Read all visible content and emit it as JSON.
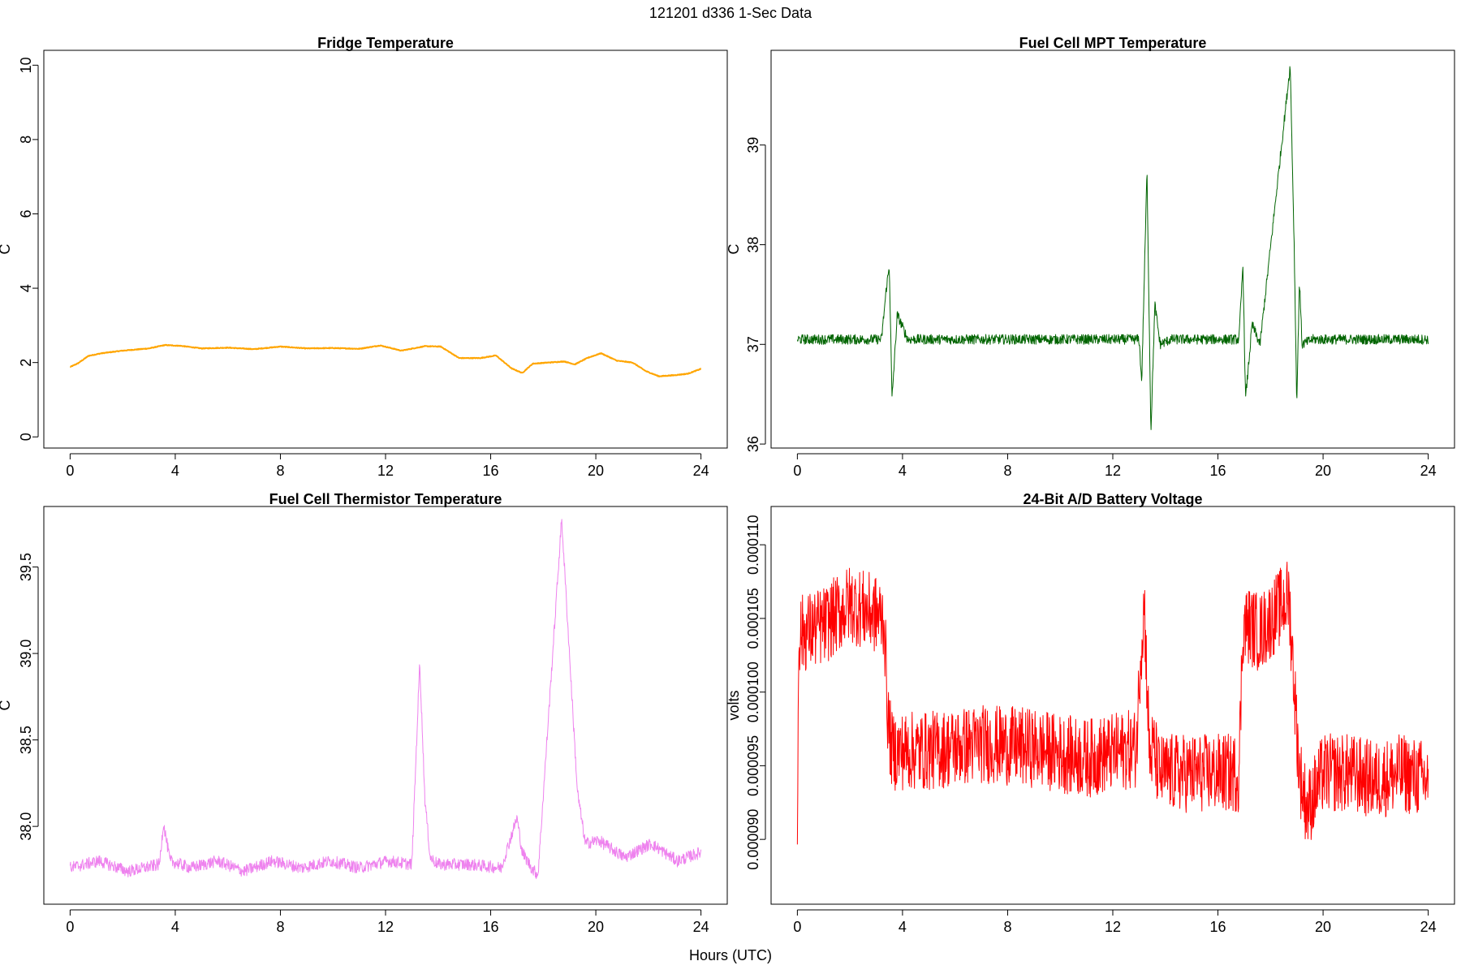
{
  "figure": {
    "title": "121201   d336   1-Sec Data",
    "xlabel": "Hours (UTC)"
  },
  "chart_data": [
    {
      "type": "line",
      "title": "Fridge Temperature",
      "xlabel": "Hours (UTC)",
      "ylabel": "C",
      "xlim": [
        -1,
        25
      ],
      "ylim": [
        -0.3,
        10.4
      ],
      "xticks": [
        0,
        4,
        8,
        12,
        16,
        20,
        24
      ],
      "yticks": [
        0,
        2,
        4,
        6,
        8,
        10
      ],
      "ytick_labels": [
        "0",
        "2",
        "4",
        "6",
        "8",
        "10"
      ],
      "color": "#FFA500",
      "noise": 0.01,
      "x": [
        0,
        0.3,
        0.7,
        1.2,
        2,
        3,
        3.6,
        4.2,
        5,
        6,
        7,
        8,
        9,
        10,
        11,
        11.8,
        12.6,
        13.5,
        14.1,
        14.8,
        15.6,
        16.2,
        16.8,
        17.2,
        17.6,
        18.2,
        18.8,
        19.2,
        19.7,
        20.2,
        20.8,
        21.4,
        21.9,
        22.4,
        23,
        23.5,
        24
      ],
      "values": [
        1.88,
        1.98,
        2.18,
        2.25,
        2.32,
        2.38,
        2.47,
        2.45,
        2.38,
        2.4,
        2.36,
        2.43,
        2.38,
        2.39,
        2.37,
        2.46,
        2.32,
        2.44,
        2.43,
        2.12,
        2.12,
        2.19,
        1.84,
        1.72,
        1.97,
        2.0,
        2.03,
        1.95,
        2.13,
        2.25,
        2.05,
        2.0,
        1.77,
        1.63,
        1.66,
        1.7,
        1.83
      ]
    },
    {
      "type": "line",
      "title": "Fuel Cell MPT Temperature",
      "xlabel": "Hours (UTC)",
      "ylabel": "C",
      "xlim": [
        -1,
        25
      ],
      "ylim": [
        35.96,
        39.95
      ],
      "xticks": [
        0,
        4,
        8,
        12,
        16,
        20,
        24
      ],
      "yticks": [
        36,
        37,
        38,
        39
      ],
      "ytick_labels": [
        "36",
        "37",
        "38",
        "39"
      ],
      "color": "#006400",
      "noise": 0.05,
      "x": [
        0,
        3.2,
        3.4,
        3.5,
        3.6,
        3.8,
        4.2,
        13,
        13.1,
        13.3,
        13.45,
        13.6,
        13.8,
        14.2,
        16.8,
        16.95,
        17.05,
        17.3,
        17.6,
        18.75,
        18.9,
        19.0,
        19.1,
        19.2,
        19.6,
        24
      ],
      "values": [
        37.05,
        37.05,
        37.6,
        37.78,
        36.45,
        37.3,
        37.05,
        37.05,
        36.62,
        38.75,
        36.12,
        37.4,
        37.0,
        37.05,
        37.05,
        37.8,
        36.45,
        37.2,
        37.0,
        39.8,
        38.0,
        36.4,
        37.65,
        37.0,
        37.05,
        37.05
      ]
    },
    {
      "type": "line",
      "title": "Fuel Cell Thermistor Temperature",
      "xlabel": "Hours (UTC)",
      "ylabel": "C",
      "xlim": [
        -1,
        25
      ],
      "ylim": [
        37.55,
        39.85
      ],
      "xticks": [
        0,
        4,
        8,
        12,
        16,
        20,
        24
      ],
      "yticks": [
        38.0,
        38.5,
        39.0,
        39.5
      ],
      "ytick_labels": [
        "38.0",
        "38.5",
        "39.0",
        "39.5"
      ],
      "color": "#EE82EE",
      "noise": 0.035,
      "x": [
        0,
        1.1,
        2.2,
        3.4,
        3.55,
        3.8,
        4.6,
        5.6,
        6.6,
        7.7,
        8.8,
        9.9,
        11,
        12.1,
        13.0,
        13.3,
        13.5,
        13.7,
        14.0,
        15.2,
        16.4,
        17.0,
        17.2,
        17.6,
        17.8,
        18.7,
        19.3,
        19.6,
        20.1,
        21.1,
        22.1,
        23.1,
        24
      ],
      "values": [
        37.76,
        37.8,
        37.74,
        37.78,
        38.02,
        37.8,
        37.76,
        37.8,
        37.74,
        37.8,
        37.76,
        37.8,
        37.76,
        37.8,
        37.78,
        38.95,
        38.15,
        37.82,
        37.78,
        37.78,
        37.76,
        38.05,
        37.85,
        37.75,
        37.72,
        39.78,
        38.2,
        37.9,
        37.92,
        37.82,
        37.9,
        37.8,
        37.85
      ]
    },
    {
      "type": "line",
      "title": "24-Bit A/D Battery Voltage",
      "xlabel": "Hours (UTC)",
      "ylabel": "volts",
      "xlim": [
        -1,
        25
      ],
      "ylim": [
        8.56e-05,
        0.0001126
      ],
      "xticks": [
        0,
        4,
        8,
        12,
        16,
        20,
        24
      ],
      "yticks": [
        9e-05,
        9.5e-05,
        0.0001,
        0.000105,
        0.00011
      ],
      "ytick_labels": [
        "0.000090",
        "0.000095",
        "0.000100",
        "0.000105",
        "0.000110"
      ],
      "color": "#FF0000",
      "noise": 2.7e-06,
      "x": [
        0,
        0.05,
        0.2,
        1,
        2,
        3.3,
        3.45,
        3.6,
        5,
        7,
        9,
        11,
        12.9,
        13.05,
        13.2,
        13.4,
        13.55,
        13.75,
        15,
        16.8,
        16.95,
        17.2,
        17.6,
        18.7,
        19.1,
        19.4,
        20,
        21,
        22,
        23,
        24
      ],
      "values": [
        9e-05,
        0.000104,
        0.000104,
        0.0001045,
        0.000106,
        0.000105,
        9.8e-05,
        9.6e-05,
        9.6e-05,
        9.65e-05,
        9.62e-05,
        9.55e-05,
        9.62e-05,
        0.0001025,
        0.000106,
        9.55e-05,
        9.62e-05,
        9.45e-05,
        9.45e-05,
        9.45e-05,
        0.0001045,
        0.0001045,
        0.000104,
        0.0001065,
        9.45e-05,
        9.2e-05,
        9.45e-05,
        9.45e-05,
        9.4e-05,
        9.45e-05,
        9.4e-05
      ]
    }
  ]
}
